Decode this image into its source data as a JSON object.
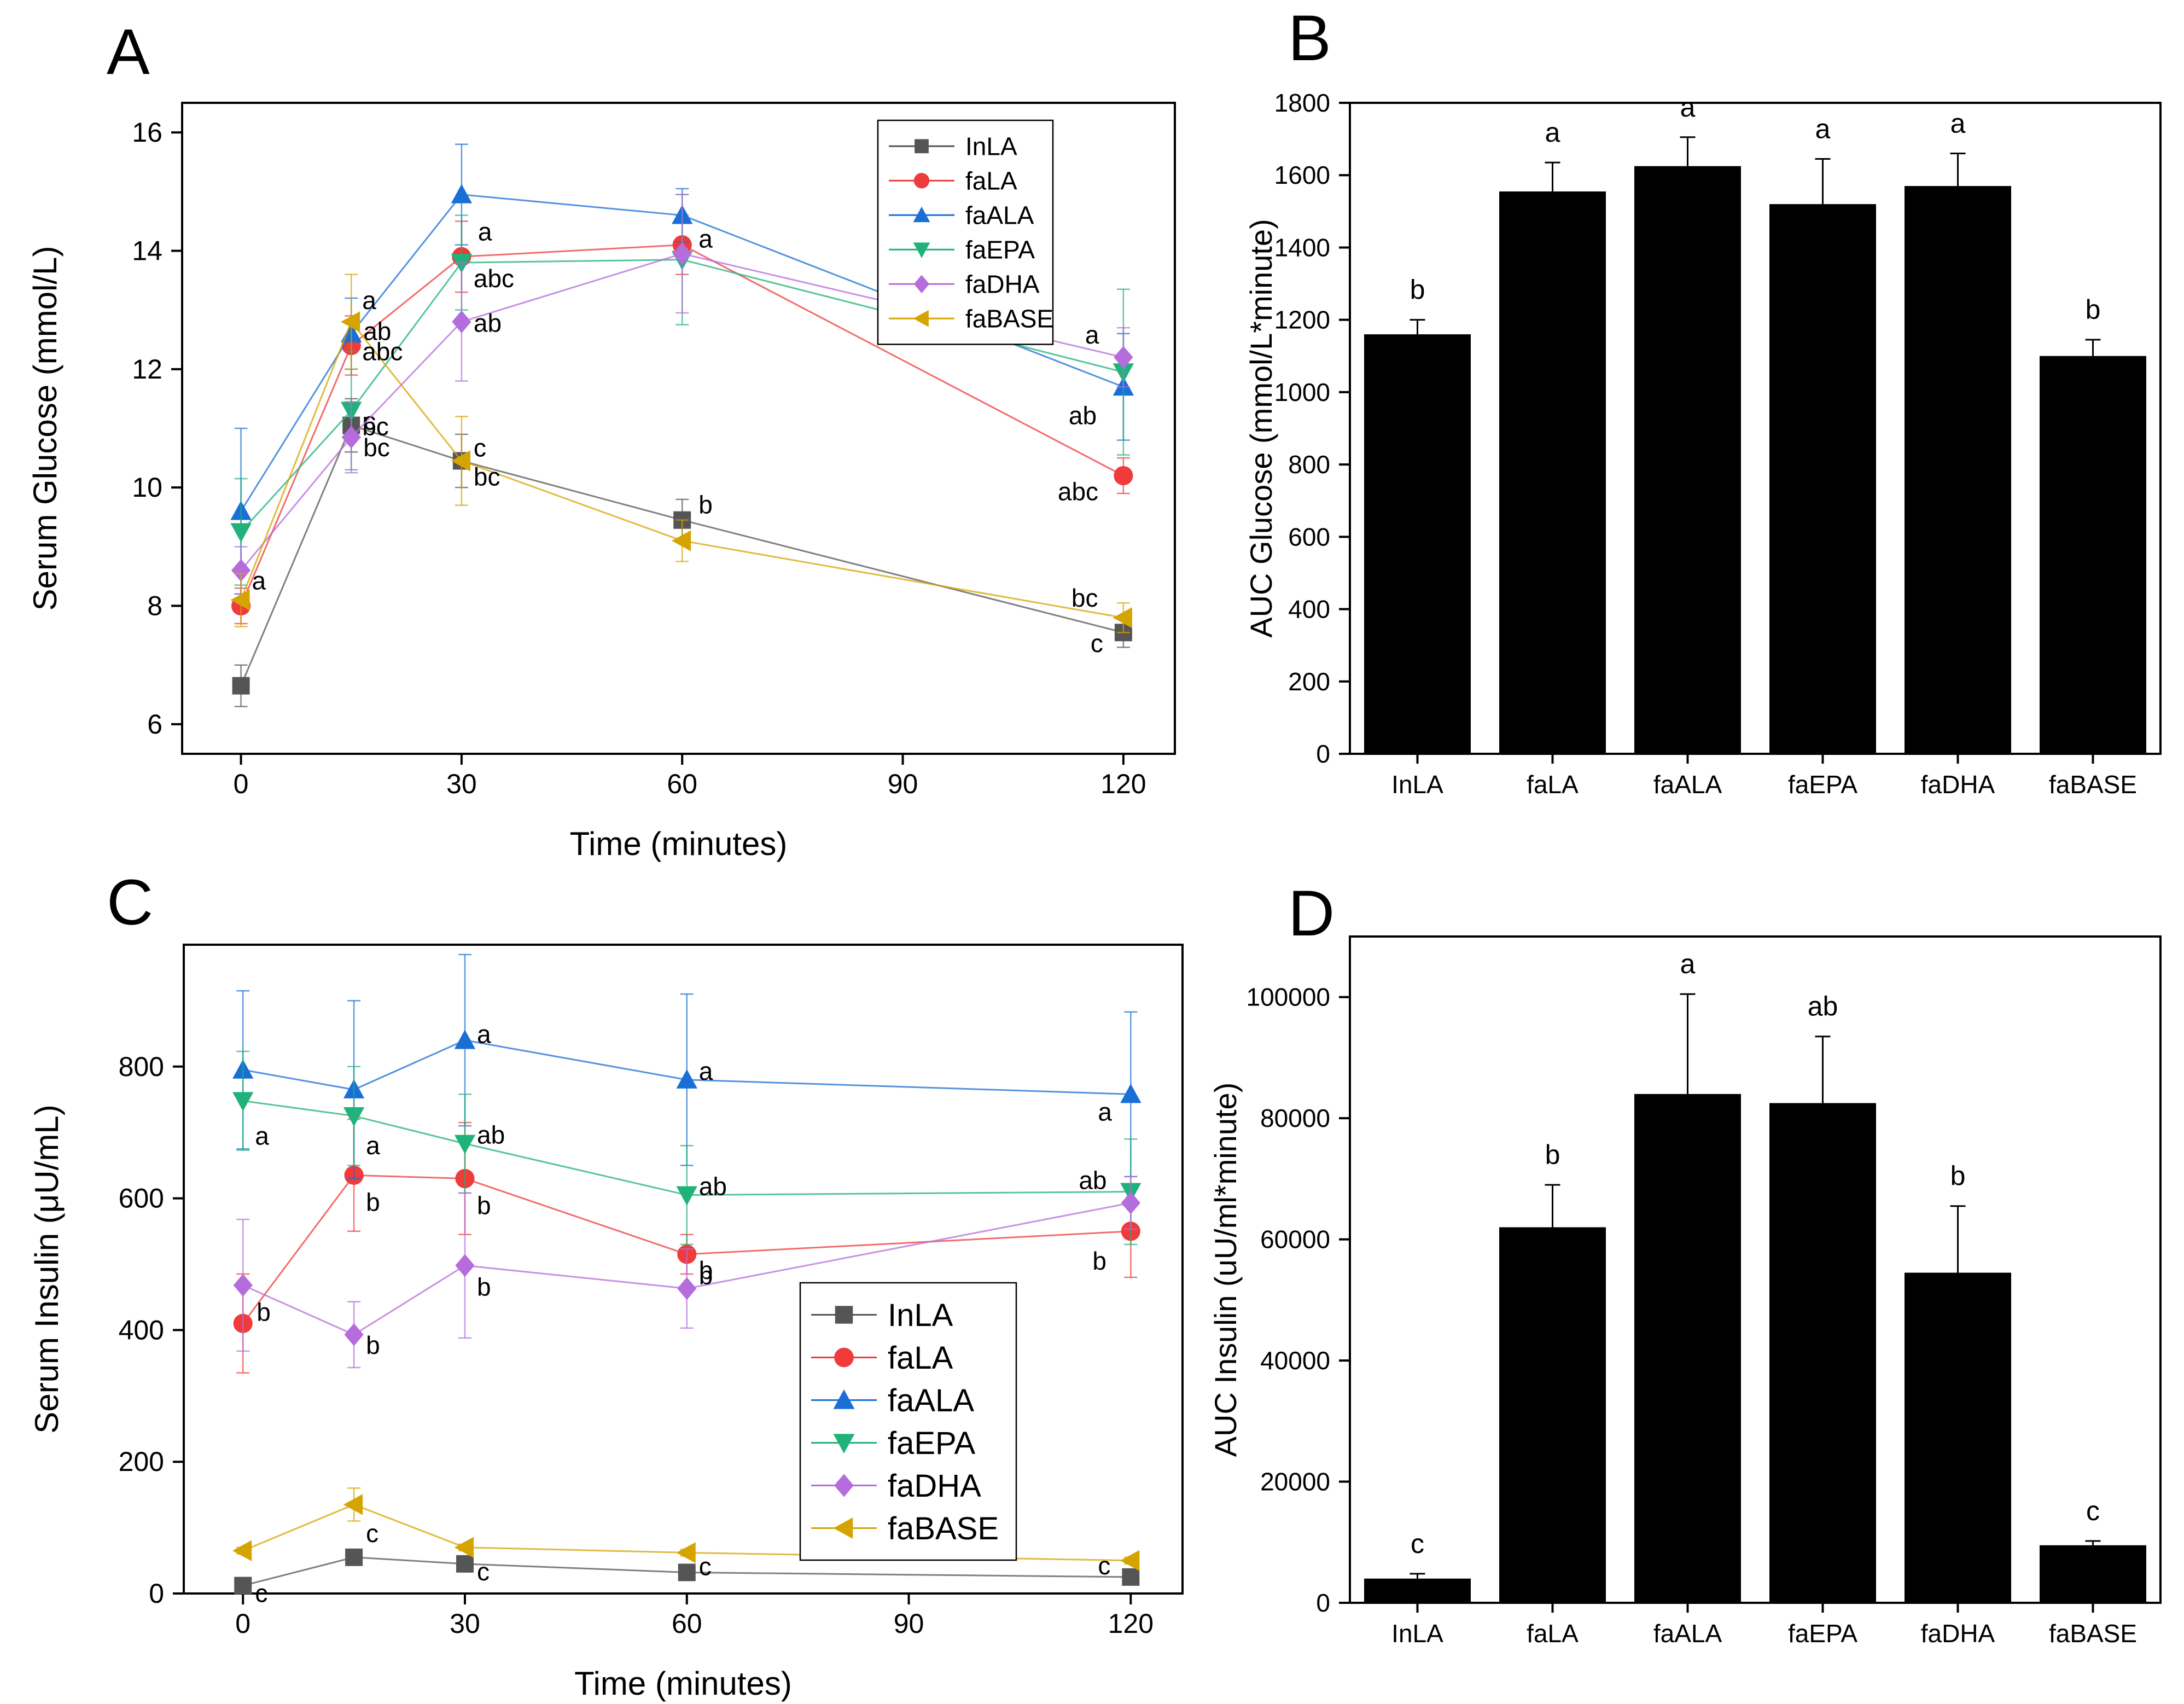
{
  "colors": {
    "InLA": "#555555",
    "faLA": "#ef3b3b",
    "faALA": "#1a6fd6",
    "faEPA": "#20b27a",
    "faDHA": "#b56cdc",
    "faBASE": "#d6a400",
    "bar": "#000000"
  },
  "chart_data": [
    {
      "panel": "A",
      "type": "line",
      "xlabel": "Time (minutes)",
      "ylabel": "Serum Glucose (mmol/L)",
      "xlim": [
        -8,
        127
      ],
      "ylim": [
        5.5,
        16.5
      ],
      "xticks": [
        0,
        30,
        60,
        90,
        120
      ],
      "yticks": [
        6,
        8,
        10,
        12,
        14,
        16
      ],
      "x": [
        0,
        15,
        30,
        60,
        120
      ],
      "legend_position": "top-right",
      "series": [
        {
          "name": "InLA",
          "marker": "square",
          "values": [
            6.65,
            11.05,
            10.45,
            9.45,
            7.55
          ],
          "errors": [
            0.35,
            0.45,
            0.45,
            0.35,
            0.25
          ],
          "labels": [
            "",
            "c",
            "c",
            "b",
            "c"
          ]
        },
        {
          "name": "faLA",
          "marker": "circle",
          "values": [
            8.0,
            12.4,
            13.9,
            14.1,
            10.2
          ],
          "errors": [
            0.3,
            0.5,
            0.6,
            0.5,
            0.3
          ],
          "labels": [
            "",
            "ab",
            "a",
            "a",
            "abc"
          ]
        },
        {
          "name": "faALA",
          "marker": "triangle-up",
          "values": [
            9.6,
            12.6,
            14.95,
            14.6,
            11.7
          ],
          "errors": [
            1.4,
            0.6,
            0.85,
            0.45,
            0.9
          ],
          "labels": [
            "",
            "a",
            "",
            "",
            "ab"
          ]
        },
        {
          "name": "faEPA",
          "marker": "triangle-down",
          "values": [
            9.25,
            11.3,
            13.8,
            13.85,
            11.95
          ],
          "errors": [
            0.9,
            1.0,
            0.8,
            1.1,
            1.4
          ],
          "labels": [
            "",
            "bc",
            "abc",
            "",
            ""
          ]
        },
        {
          "name": "faDHA",
          "marker": "diamond",
          "values": [
            8.6,
            10.85,
            12.8,
            13.95,
            12.2
          ],
          "errors": [
            0.4,
            0.6,
            1.0,
            1.0,
            0.5
          ],
          "labels": [
            "a",
            "bc",
            "ab",
            "",
            "a"
          ]
        },
        {
          "name": "faBASE",
          "marker": "triangle-left",
          "values": [
            8.1,
            12.8,
            10.45,
            9.1,
            7.8
          ],
          "errors": [
            0.45,
            0.8,
            0.75,
            0.35,
            0.25
          ],
          "labels": [
            "",
            "abc",
            "bc",
            "",
            "bc"
          ]
        }
      ]
    },
    {
      "panel": "B",
      "type": "bar",
      "xlabel": "",
      "ylabel": "AUC Glucose (mmol/L*minute)",
      "ylim": [
        0,
        1800
      ],
      "yticks": [
        0,
        200,
        400,
        600,
        800,
        1000,
        1200,
        1400,
        1600,
        1800
      ],
      "categories": [
        "InLA",
        "faLA",
        "faALA",
        "faEPA",
        "faDHA",
        "faBASE"
      ],
      "values": [
        1160,
        1555,
        1625,
        1520,
        1570,
        1100
      ],
      "errors": [
        40,
        80,
        80,
        125,
        90,
        45
      ],
      "labels": [
        "b",
        "a",
        "a",
        "a",
        "a",
        "b"
      ]
    },
    {
      "panel": "C",
      "type": "line",
      "xlabel": "Time (minutes)",
      "ylabel": "Serum Insulin (μU/mL)",
      "xlim": [
        -8,
        127
      ],
      "ylim": [
        0,
        985
      ],
      "xticks": [
        0,
        30,
        60,
        90,
        120
      ],
      "yticks": [
        0,
        200,
        400,
        600,
        800
      ],
      "x": [
        0,
        15,
        30,
        60,
        120
      ],
      "legend_position": "bottom-center",
      "series": [
        {
          "name": "InLA",
          "marker": "square",
          "values": [
            12,
            55,
            45,
            32,
            25
          ],
          "errors": [
            3,
            10,
            10,
            5,
            5
          ],
          "labels": [
            "c",
            "c",
            "c",
            "c",
            "c"
          ]
        },
        {
          "name": "faLA",
          "marker": "circle",
          "values": [
            410,
            635,
            630,
            515,
            550
          ],
          "errors": [
            75,
            85,
            85,
            30,
            70
          ],
          "labels": [
            "b",
            "b",
            "b",
            "b",
            "b"
          ]
        },
        {
          "name": "faALA",
          "marker": "triangle-up",
          "values": [
            795,
            765,
            840,
            780,
            758
          ],
          "errors": [
            120,
            135,
            130,
            130,
            125
          ],
          "labels": [
            "",
            "",
            "a",
            "a",
            "a"
          ]
        },
        {
          "name": "faEPA",
          "marker": "triangle-down",
          "values": [
            748,
            725,
            683,
            605,
            610
          ],
          "errors": [
            75,
            75,
            75,
            75,
            80
          ],
          "labels": [
            "a",
            "a",
            "ab",
            "ab",
            "ab"
          ]
        },
        {
          "name": "faDHA",
          "marker": "diamond",
          "values": [
            468,
            393,
            498,
            463,
            593
          ],
          "errors": [
            100,
            50,
            110,
            60,
            40
          ],
          "labels": [
            "",
            "b",
            "b",
            "b",
            ""
          ]
        },
        {
          "name": "faBASE",
          "marker": "triangle-left",
          "values": [
            65,
            135,
            70,
            62,
            50
          ],
          "errors": [
            5,
            25,
            5,
            5,
            5
          ],
          "labels": [
            "",
            "",
            "",
            "",
            ""
          ]
        }
      ]
    },
    {
      "panel": "D",
      "type": "bar",
      "xlabel": "",
      "ylabel": "AUC Insulin (uU/ml*minute)",
      "ylim": [
        0,
        110000
      ],
      "yticks": [
        0,
        20000,
        40000,
        60000,
        80000,
        100000
      ],
      "categories": [
        "InLA",
        "faLA",
        "faALA",
        "faEPA",
        "faDHA",
        "faBASE"
      ],
      "values": [
        4000,
        62000,
        84000,
        82500,
        54500,
        9500
      ],
      "errors": [
        800,
        7000,
        16500,
        11000,
        11000,
        700
      ],
      "labels": [
        "c",
        "b",
        "a",
        "ab",
        "b",
        "c"
      ]
    }
  ]
}
